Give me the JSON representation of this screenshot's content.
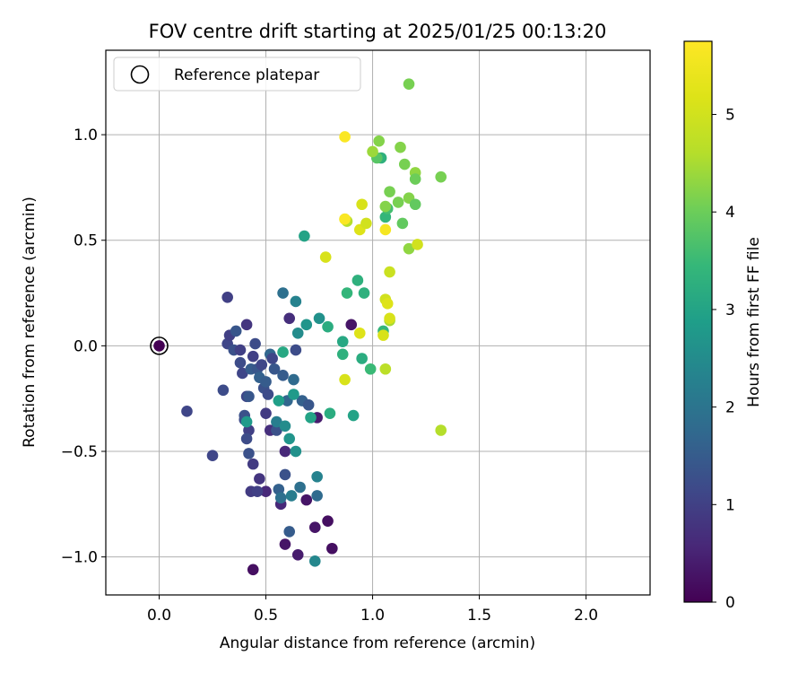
{
  "chart_data": {
    "type": "scatter",
    "title": "FOV centre drift starting at 2025/01/25 00:13:20",
    "xlabel": "Angular distance from reference (arcmin)",
    "ylabel": "Rotation from reference (arcmin)",
    "xlim": [
      -0.25,
      2.3
    ],
    "ylim": [
      -1.18,
      1.4
    ],
    "xticks": [
      0.0,
      0.5,
      1.0,
      1.5,
      2.0
    ],
    "xtick_labels": [
      "0.0",
      "0.5",
      "1.0",
      "1.5",
      "2.0"
    ],
    "yticks": [
      -1.0,
      -0.5,
      0.0,
      0.5,
      1.0
    ],
    "ytick_labels": [
      "−1.0",
      "−0.5",
      "0.0",
      "0.5",
      "1.0"
    ],
    "grid": true,
    "legend": {
      "placement": "top-left",
      "entries": [
        "Reference platepar"
      ]
    },
    "colorbar": {
      "label": "Hours from first FF file",
      "colormap": "viridis",
      "range": [
        0,
        5.75
      ],
      "ticks": [
        0,
        1,
        2,
        3,
        4,
        5
      ],
      "tick_labels": [
        "0",
        "1",
        "2",
        "3",
        "4",
        "5"
      ]
    },
    "reference_point": {
      "x": 0.0,
      "y": 0.0,
      "hours": 0.0
    },
    "points": [
      {
        "x": 0.44,
        "y": -1.06,
        "h": 0.2
      },
      {
        "x": 0.59,
        "y": -0.94,
        "h": 0.3
      },
      {
        "x": 0.65,
        "y": -0.99,
        "h": 0.4
      },
      {
        "x": 0.73,
        "y": -0.86,
        "h": 0.3
      },
      {
        "x": 0.79,
        "y": -0.83,
        "h": 0.2
      },
      {
        "x": 0.81,
        "y": -0.96,
        "h": 0.2
      },
      {
        "x": 0.69,
        "y": -0.73,
        "h": 0.3
      },
      {
        "x": 0.74,
        "y": -0.34,
        "h": 0.4
      },
      {
        "x": 0.9,
        "y": 0.1,
        "h": 0.3
      },
      {
        "x": 0.59,
        "y": -0.5,
        "h": 0.6
      },
      {
        "x": 0.61,
        "y": 0.13,
        "h": 0.7
      },
      {
        "x": 0.5,
        "y": -0.69,
        "h": 0.6
      },
      {
        "x": 0.47,
        "y": -0.63,
        "h": 0.8
      },
      {
        "x": 0.44,
        "y": -0.56,
        "h": 0.9
      },
      {
        "x": 0.41,
        "y": 0.1,
        "h": 0.8
      },
      {
        "x": 0.52,
        "y": -0.4,
        "h": 0.7
      },
      {
        "x": 0.5,
        "y": -0.32,
        "h": 0.9
      },
      {
        "x": 0.57,
        "y": -0.75,
        "h": 0.6
      },
      {
        "x": 0.43,
        "y": -0.69,
        "h": 0.9
      },
      {
        "x": 0.46,
        "y": -0.69,
        "h": 1.0
      },
      {
        "x": 0.32,
        "y": 0.23,
        "h": 1.0
      },
      {
        "x": 0.13,
        "y": -0.31,
        "h": 1.1
      },
      {
        "x": 0.25,
        "y": -0.52,
        "h": 1.1
      },
      {
        "x": 0.3,
        "y": -0.21,
        "h": 1.2
      },
      {
        "x": 0.32,
        "y": 0.01,
        "h": 1.1
      },
      {
        "x": 0.33,
        "y": 0.05,
        "h": 1.0
      },
      {
        "x": 0.35,
        "y": -0.02,
        "h": 1.3
      },
      {
        "x": 0.36,
        "y": 0.07,
        "h": 1.4
      },
      {
        "x": 0.38,
        "y": -0.02,
        "h": 1.0
      },
      {
        "x": 0.38,
        "y": -0.08,
        "h": 1.2
      },
      {
        "x": 0.39,
        "y": -0.13,
        "h": 1.1
      },
      {
        "x": 0.4,
        "y": -0.35,
        "h": 1.2
      },
      {
        "x": 0.4,
        "y": -0.33,
        "h": 1.3
      },
      {
        "x": 0.41,
        "y": -0.24,
        "h": 1.1
      },
      {
        "x": 0.42,
        "y": -0.24,
        "h": 1.4
      },
      {
        "x": 0.42,
        "y": -0.4,
        "h": 1.0
      },
      {
        "x": 0.41,
        "y": -0.44,
        "h": 1.2
      },
      {
        "x": 0.42,
        "y": -0.51,
        "h": 1.3
      },
      {
        "x": 0.43,
        "y": -0.11,
        "h": 1.5
      },
      {
        "x": 0.44,
        "y": -0.05,
        "h": 1.0
      },
      {
        "x": 0.45,
        "y": 0.01,
        "h": 1.2
      },
      {
        "x": 0.46,
        "y": -0.11,
        "h": 1.4
      },
      {
        "x": 0.47,
        "y": -0.15,
        "h": 1.6
      },
      {
        "x": 0.48,
        "y": -0.09,
        "h": 1.1
      },
      {
        "x": 0.49,
        "y": -0.2,
        "h": 1.3
      },
      {
        "x": 0.5,
        "y": -0.17,
        "h": 1.5
      },
      {
        "x": 0.51,
        "y": -0.23,
        "h": 1.2
      },
      {
        "x": 0.52,
        "y": -0.04,
        "h": 1.7
      },
      {
        "x": 0.53,
        "y": -0.06,
        "h": 1.1
      },
      {
        "x": 0.54,
        "y": -0.11,
        "h": 1.4
      },
      {
        "x": 0.55,
        "y": -0.4,
        "h": 1.3
      },
      {
        "x": 0.56,
        "y": -0.68,
        "h": 1.6
      },
      {
        "x": 0.57,
        "y": -0.72,
        "h": 1.9
      },
      {
        "x": 0.58,
        "y": -0.14,
        "h": 1.5
      },
      {
        "x": 0.59,
        "y": -0.61,
        "h": 1.3
      },
      {
        "x": 0.6,
        "y": -0.26,
        "h": 1.7
      },
      {
        "x": 0.61,
        "y": -0.88,
        "h": 1.5
      },
      {
        "x": 0.62,
        "y": -0.71,
        "h": 2.2
      },
      {
        "x": 0.63,
        "y": -0.16,
        "h": 1.8
      },
      {
        "x": 0.64,
        "y": -0.02,
        "h": 1.2
      },
      {
        "x": 0.66,
        "y": -0.67,
        "h": 1.9
      },
      {
        "x": 0.67,
        "y": -0.26,
        "h": 1.6
      },
      {
        "x": 0.7,
        "y": -0.28,
        "h": 1.4
      },
      {
        "x": 0.74,
        "y": -0.71,
        "h": 1.8
      },
      {
        "x": 0.74,
        "y": -0.62,
        "h": 2.3
      },
      {
        "x": 0.73,
        "y": -1.02,
        "h": 2.4
      },
      {
        "x": 0.58,
        "y": 0.25,
        "h": 1.9
      },
      {
        "x": 0.64,
        "y": 0.21,
        "h": 2.3
      },
      {
        "x": 0.65,
        "y": 0.06,
        "h": 2.5
      },
      {
        "x": 0.69,
        "y": 0.1,
        "h": 2.7
      },
      {
        "x": 0.75,
        "y": 0.13,
        "h": 2.6
      },
      {
        "x": 0.55,
        "y": -0.36,
        "h": 2.2
      },
      {
        "x": 0.56,
        "y": -0.26,
        "h": 2.9
      },
      {
        "x": 0.59,
        "y": -0.38,
        "h": 2.5
      },
      {
        "x": 0.61,
        "y": -0.44,
        "h": 2.7
      },
      {
        "x": 0.64,
        "y": -0.5,
        "h": 2.6
      },
      {
        "x": 0.63,
        "y": -0.23,
        "h": 2.8
      },
      {
        "x": 0.58,
        "y": -0.03,
        "h": 3.1
      },
      {
        "x": 0.68,
        "y": 0.52,
        "h": 3.0
      },
      {
        "x": 0.71,
        "y": -0.34,
        "h": 3.0
      },
      {
        "x": 0.79,
        "y": 0.09,
        "h": 3.2
      },
      {
        "x": 0.8,
        "y": -0.32,
        "h": 3.2
      },
      {
        "x": 0.86,
        "y": 0.02,
        "h": 3.1
      },
      {
        "x": 0.86,
        "y": -0.04,
        "h": 3.3
      },
      {
        "x": 0.88,
        "y": 0.25,
        "h": 3.4
      },
      {
        "x": 0.91,
        "y": -0.33,
        "h": 3.0
      },
      {
        "x": 0.93,
        "y": 0.31,
        "h": 3.3
      },
      {
        "x": 0.95,
        "y": -0.06,
        "h": 3.2
      },
      {
        "x": 0.96,
        "y": 0.25,
        "h": 3.3
      },
      {
        "x": 0.99,
        "y": -0.11,
        "h": 3.5
      },
      {
        "x": 0.41,
        "y": -0.36,
        "h": 2.8
      },
      {
        "x": 1.04,
        "y": 0.89,
        "h": 3.3
      },
      {
        "x": 1.05,
        "y": 0.07,
        "h": 3.4
      },
      {
        "x": 1.06,
        "y": 0.61,
        "h": 3.4
      },
      {
        "x": 1.07,
        "y": 0.65,
        "h": 3.6
      },
      {
        "x": 1.02,
        "y": 0.89,
        "h": 3.8
      },
      {
        "x": 1.03,
        "y": 0.97,
        "h": 4.2
      },
      {
        "x": 1.0,
        "y": 0.92,
        "h": 4.4
      },
      {
        "x": 0.88,
        "y": 0.59,
        "h": 4.6
      },
      {
        "x": 1.08,
        "y": 0.73,
        "h": 4.1
      },
      {
        "x": 1.12,
        "y": 0.68,
        "h": 4.1
      },
      {
        "x": 1.14,
        "y": 0.58,
        "h": 3.9
      },
      {
        "x": 1.13,
        "y": 0.94,
        "h": 4.2
      },
      {
        "x": 1.15,
        "y": 0.86,
        "h": 4.1
      },
      {
        "x": 1.17,
        "y": 0.7,
        "h": 4.2
      },
      {
        "x": 1.17,
        "y": 0.46,
        "h": 4.3
      },
      {
        "x": 1.17,
        "y": 1.24,
        "h": 4.1
      },
      {
        "x": 1.2,
        "y": 0.82,
        "h": 4.3
      },
      {
        "x": 1.2,
        "y": 0.79,
        "h": 4.0
      },
      {
        "x": 1.2,
        "y": 0.67,
        "h": 3.9
      },
      {
        "x": 1.32,
        "y": 0.8,
        "h": 4.1
      },
      {
        "x": 1.06,
        "y": -0.11,
        "h": 4.7
      },
      {
        "x": 1.08,
        "y": 0.12,
        "h": 4.5
      },
      {
        "x": 1.32,
        "y": -0.4,
        "h": 4.6
      },
      {
        "x": 0.87,
        "y": -0.16,
        "h": 5.1
      },
      {
        "x": 0.78,
        "y": 0.42,
        "h": 5.1
      },
      {
        "x": 0.87,
        "y": 0.6,
        "h": 5.0
      },
      {
        "x": 0.94,
        "y": 0.55,
        "h": 5.2
      },
      {
        "x": 0.95,
        "y": 0.67,
        "h": 5.1
      },
      {
        "x": 0.97,
        "y": 0.58,
        "h": 5.0
      },
      {
        "x": 0.94,
        "y": 0.06,
        "h": 5.2
      },
      {
        "x": 1.05,
        "y": 0.05,
        "h": 5.1
      },
      {
        "x": 1.06,
        "y": 0.22,
        "h": 5.0
      },
      {
        "x": 1.07,
        "y": 0.2,
        "h": 5.2
      },
      {
        "x": 1.08,
        "y": 0.13,
        "h": 5.1
      },
      {
        "x": 1.08,
        "y": 0.35,
        "h": 4.9
      },
      {
        "x": 1.21,
        "y": 0.48,
        "h": 5.0
      },
      {
        "x": 0.87,
        "y": 0.99,
        "h": 5.7
      },
      {
        "x": 0.87,
        "y": 0.6,
        "h": 5.7
      },
      {
        "x": 1.06,
        "y": 0.55,
        "h": 5.6
      },
      {
        "x": 1.06,
        "y": 0.66,
        "h": 4.2
      }
    ]
  }
}
